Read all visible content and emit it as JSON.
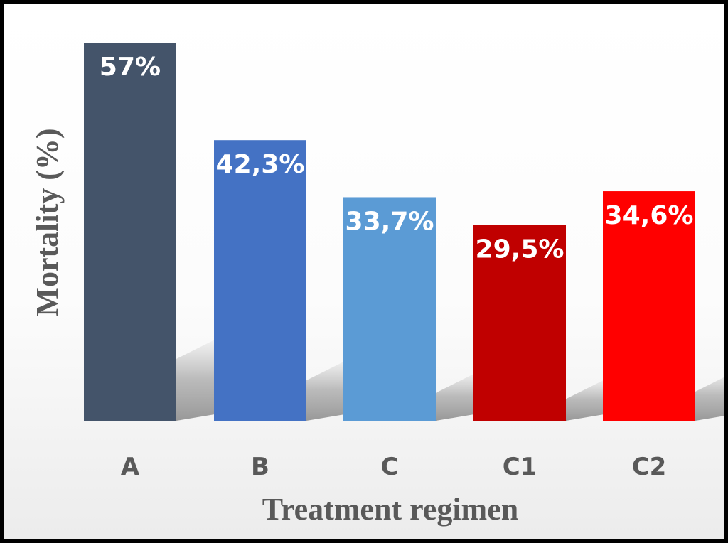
{
  "chart_data": {
    "type": "bar",
    "title": "",
    "xlabel": "Treatment regimen",
    "ylabel": "Mortality (%)",
    "ylim": [
      0,
      60
    ],
    "grid": false,
    "legend": "none",
    "categories": [
      "A",
      "B",
      "C",
      "C1",
      "C2"
    ],
    "values": [
      57,
      42.3,
      33.7,
      29.5,
      34.6
    ],
    "value_labels": [
      "57%",
      "42,3%",
      "33,7%",
      "29,5%",
      "34,6%"
    ],
    "colors": [
      "#44546A",
      "#4472C4",
      "#5B9BD5",
      "#C00000",
      "#FF0000"
    ]
  }
}
